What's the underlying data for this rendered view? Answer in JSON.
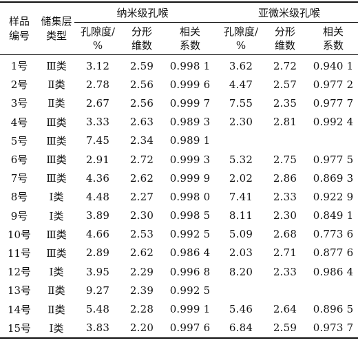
{
  "header": {
    "sample_label": "样品\n编号",
    "type_label": "储集层\n类型",
    "group_nano": "纳米级孔喉",
    "group_submicro": "亚微米级孔喉",
    "sub_cols": [
      "孔隙度/\n%",
      "分形\n维数",
      "相关\n系数",
      "孔隙度/\n%",
      "分形\n维数",
      "相关\n系数"
    ]
  },
  "rows": [
    {
      "sample": "1号",
      "type": "Ⅲ类",
      "nano_por": "3.12",
      "nano_fd": "2.59",
      "nano_cc": "0.998 1",
      "sub_por": "3.62",
      "sub_fd": "2.72",
      "sub_cc": "0.940 1"
    },
    {
      "sample": "2号",
      "type": "Ⅱ类",
      "nano_por": "2.78",
      "nano_fd": "2.56",
      "nano_cc": "0.999 6",
      "sub_por": "4.47",
      "sub_fd": "2.57",
      "sub_cc": "0.977 2"
    },
    {
      "sample": "3号",
      "type": "Ⅱ类",
      "nano_por": "2.67",
      "nano_fd": "2.56",
      "nano_cc": "0.999 7",
      "sub_por": "7.55",
      "sub_fd": "2.35",
      "sub_cc": "0.977 7"
    },
    {
      "sample": "4号",
      "type": "Ⅲ类",
      "nano_por": "3.33",
      "nano_fd": "2.63",
      "nano_cc": "0.989 3",
      "sub_por": "2.30",
      "sub_fd": "2.81",
      "sub_cc": "0.992 4"
    },
    {
      "sample": "5号",
      "type": "Ⅲ类",
      "nano_por": "7.45",
      "nano_fd": "2.34",
      "nano_cc": "0.989 1",
      "sub_por": "",
      "sub_fd": "",
      "sub_cc": ""
    },
    {
      "sample": "6号",
      "type": "Ⅲ类",
      "nano_por": "2.91",
      "nano_fd": "2.72",
      "nano_cc": "0.999 3",
      "sub_por": "5.32",
      "sub_fd": "2.75",
      "sub_cc": "0.977 5"
    },
    {
      "sample": "7号",
      "type": "Ⅲ类",
      "nano_por": "4.36",
      "nano_fd": "2.62",
      "nano_cc": "0.999 9",
      "sub_por": "2.02",
      "sub_fd": "2.86",
      "sub_cc": "0.869 3"
    },
    {
      "sample": "8号",
      "type": "Ⅰ类",
      "nano_por": "4.48",
      "nano_fd": "2.27",
      "nano_cc": "0.998 0",
      "sub_por": "7.41",
      "sub_fd": "2.33",
      "sub_cc": "0.922 9"
    },
    {
      "sample": "9号",
      "type": "Ⅰ类",
      "nano_por": "3.89",
      "nano_fd": "2.30",
      "nano_cc": "0.998 5",
      "sub_por": "8.11",
      "sub_fd": "2.30",
      "sub_cc": "0.849 1"
    },
    {
      "sample": "10号",
      "type": "Ⅲ类",
      "nano_por": "4.66",
      "nano_fd": "2.53",
      "nano_cc": "0.992 5",
      "sub_por": "5.09",
      "sub_fd": "2.68",
      "sub_cc": "0.773 6"
    },
    {
      "sample": "11号",
      "type": "Ⅲ类",
      "nano_por": "2.89",
      "nano_fd": "2.62",
      "nano_cc": "0.986 4",
      "sub_por": "2.03",
      "sub_fd": "2.71",
      "sub_cc": "0.877 6"
    },
    {
      "sample": "12号",
      "type": "Ⅰ类",
      "nano_por": "3.95",
      "nano_fd": "2.29",
      "nano_cc": "0.996 8",
      "sub_por": "8.20",
      "sub_fd": "2.33",
      "sub_cc": "0.986 4"
    },
    {
      "sample": "13号",
      "type": "Ⅱ类",
      "nano_por": "9.27",
      "nano_fd": "2.39",
      "nano_cc": "0.992 5",
      "sub_por": "",
      "sub_fd": "",
      "sub_cc": ""
    },
    {
      "sample": "14号",
      "type": "Ⅱ类",
      "nano_por": "5.48",
      "nano_fd": "2.28",
      "nano_cc": "0.999 1",
      "sub_por": "5.46",
      "sub_fd": "2.64",
      "sub_cc": "0.896 5"
    },
    {
      "sample": "15号",
      "type": "Ⅰ类",
      "nano_por": "3.83",
      "nano_fd": "2.20",
      "nano_cc": "0.997 6",
      "sub_por": "6.84",
      "sub_fd": "2.59",
      "sub_cc": "0.973 7"
    }
  ]
}
